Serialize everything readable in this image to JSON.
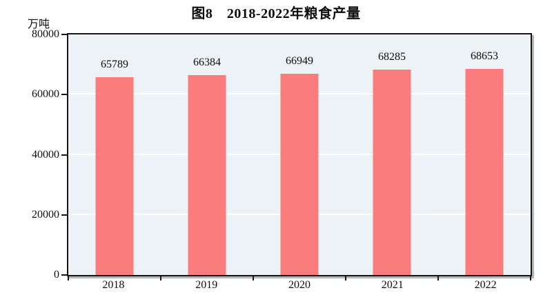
{
  "page": {
    "background": "#ffffff"
  },
  "chart_data": {
    "type": "bar",
    "title": "图8　2018-2022年粮食产量",
    "unit_label": "万吨",
    "categories": [
      "2018",
      "2019",
      "2020",
      "2021",
      "2022"
    ],
    "values": [
      65789,
      66384,
      66949,
      68285,
      68653
    ],
    "data_labels": [
      "65789",
      "66384",
      "66949",
      "68285",
      "68653"
    ],
    "xlabel": "",
    "ylabel": "万吨",
    "ylim": [
      0,
      80000
    ],
    "y_ticks": [
      0,
      20000,
      40000,
      60000,
      80000
    ],
    "grid": "horizontal gridlines at 20000, 40000, 60000 (white on pale panel)",
    "legend_position": "none",
    "bar_color": "#fa7c7c",
    "plot_bg": "#edf2f6",
    "axis_border_color": "#141414",
    "shadow_color": "#b4b8bb"
  }
}
